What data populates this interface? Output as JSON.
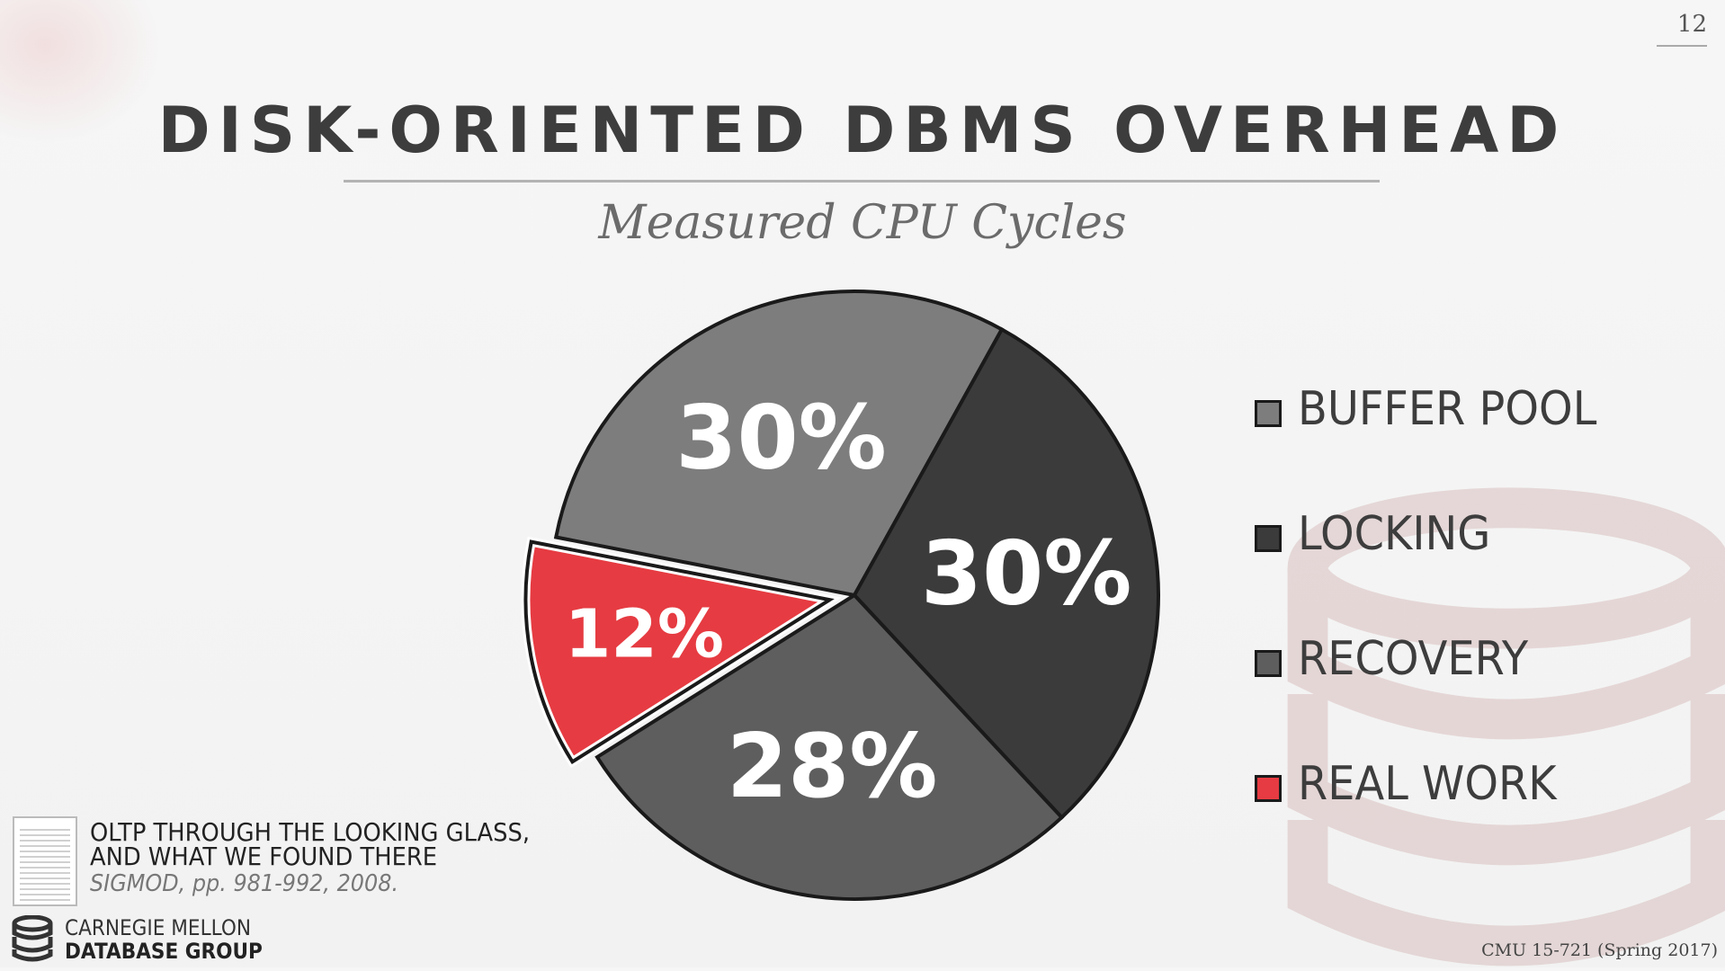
{
  "page_number": "12",
  "title": "DISK-ORIENTED DBMS OVERHEAD",
  "subtitle": "Measured CPU Cycles",
  "colors": {
    "buffer_pool": "#7d7d7d",
    "locking": "#3b3b3b",
    "recovery": "#5e5e5e",
    "real_work": "#e63b42",
    "outline": "#1a1a1a"
  },
  "chart_data": {
    "type": "pie",
    "title": "Measured CPU Cycles",
    "legend_position": "right",
    "slices": [
      {
        "name": "BUFFER POOL",
        "value": 30,
        "label": "30%",
        "color": "#7d7d7d",
        "exploded": false
      },
      {
        "name": "LOCKING",
        "value": 30,
        "label": "30%",
        "color": "#3b3b3b",
        "exploded": false
      },
      {
        "name": "RECOVERY",
        "value": 28,
        "label": "28%",
        "color": "#5e5e5e",
        "exploded": false
      },
      {
        "name": "REAL WORK",
        "value": 12,
        "label": "12%",
        "color": "#e63b42",
        "exploded": true
      }
    ]
  },
  "citation": {
    "title_line1": "OLTP THROUGH THE LOOKING GLASS,",
    "title_line2": "AND WHAT WE FOUND THERE",
    "venue": "SIGMOD, pp. 981-992, 2008."
  },
  "logo": {
    "line1": "CARNEGIE MELLON",
    "line2": "DATABASE GROUP"
  },
  "footer": "CMU 15-721 (Spring 2017)"
}
